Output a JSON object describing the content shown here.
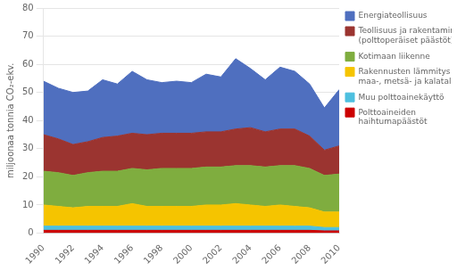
{
  "chart_data": {
    "type": "area",
    "stacked": true,
    "ylabel": "miljoonaa tonnia CO₂-ekv.",
    "x": [
      1990,
      1991,
      1992,
      1993,
      1994,
      1995,
      1996,
      1997,
      1998,
      1999,
      2000,
      2001,
      2002,
      2003,
      2004,
      2005,
      2006,
      2007,
      2008,
      2009,
      2010
    ],
    "series": [
      {
        "name": "Polttoaineiden\nhaihtumapäästöt",
        "color": "#cc0000",
        "values": [
          1.0,
          1.0,
          1.0,
          1.0,
          1.0,
          1.0,
          1.0,
          1.0,
          1.0,
          1.0,
          1.0,
          1.0,
          1.0,
          1.0,
          1.0,
          1.0,
          1.0,
          1.0,
          1.0,
          0.8,
          0.8
        ]
      },
      {
        "name": "Muu polttoainekäyttö",
        "color": "#4dbfdf",
        "values": [
          1.5,
          1.5,
          1.5,
          1.5,
          1.5,
          1.5,
          1.5,
          1.5,
          1.5,
          1.5,
          1.5,
          1.5,
          1.5,
          1.5,
          1.5,
          1.5,
          1.5,
          1.5,
          1.5,
          1.2,
          1.2
        ]
      },
      {
        "name": "Rakennusten lämmitys sekä\nmaa-, metsä- ja kalatalous",
        "color": "#f5c400",
        "values": [
          7.5,
          7.0,
          6.5,
          7.0,
          7.0,
          7.0,
          8.0,
          7.0,
          7.0,
          7.0,
          7.0,
          7.5,
          7.5,
          8.0,
          7.5,
          7.0,
          7.5,
          7.0,
          6.5,
          5.5,
          5.5
        ]
      },
      {
        "name": "Kotimaan liikenne",
        "color": "#7fad3f",
        "values": [
          12.0,
          12.0,
          11.5,
          12.0,
          12.5,
          12.5,
          12.5,
          13.0,
          13.5,
          13.5,
          13.5,
          13.5,
          13.5,
          13.5,
          14.0,
          14.0,
          14.0,
          14.5,
          14.0,
          13.0,
          13.5
        ]
      },
      {
        "name": "Teollisuus ja rakentaminen\n(polttoperäiset päästöt)",
        "color": "#9b3430",
        "values": [
          13.0,
          12.0,
          11.0,
          11.0,
          12.0,
          12.5,
          12.5,
          12.5,
          12.5,
          12.5,
          12.5,
          12.5,
          12.5,
          13.0,
          13.5,
          12.5,
          13.0,
          13.0,
          11.5,
          9.0,
          10.0
        ]
      },
      {
        "name": "Energiateollisuus",
        "color": "#4f6fbf",
        "values": [
          19.0,
          18.0,
          18.5,
          18.0,
          20.5,
          18.5,
          22.0,
          19.5,
          18.0,
          18.5,
          18.0,
          20.5,
          19.5,
          25.0,
          21.0,
          18.5,
          22.0,
          20.5,
          18.5,
          15.0,
          20.0
        ]
      }
    ],
    "xlim": [
      1990,
      2010
    ],
    "xticks": [
      1990,
      1992,
      1994,
      1996,
      1998,
      2000,
      2002,
      2004,
      2006,
      2008,
      2010
    ],
    "ylim": [
      0,
      80
    ],
    "yticks": [
      0,
      10,
      20,
      30,
      40,
      50,
      60,
      70,
      80
    ],
    "grid": true,
    "legend": "right"
  }
}
